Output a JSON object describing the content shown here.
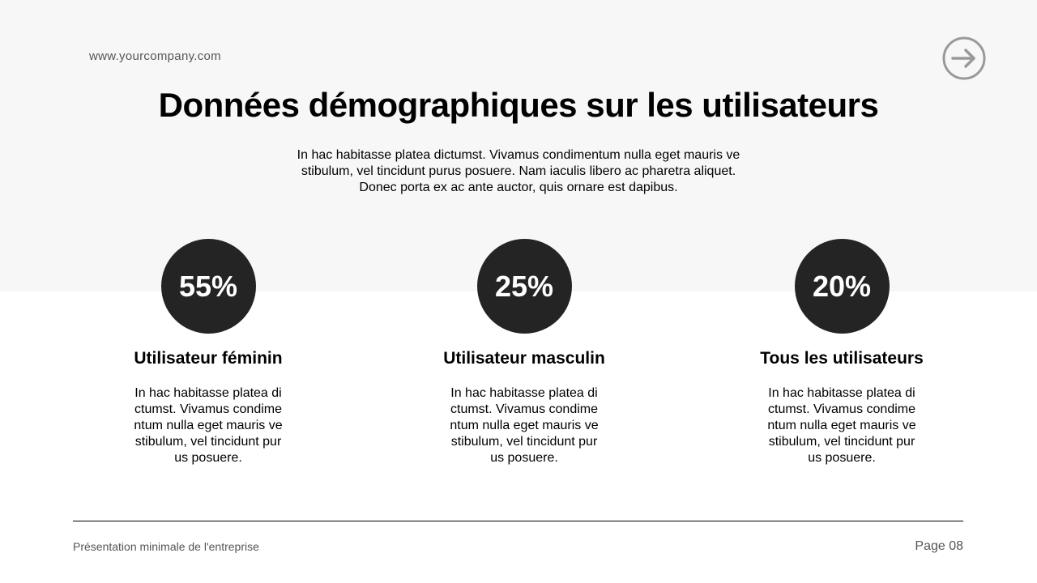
{
  "header": {
    "url": "www.yourcompany.com",
    "next_icon": "arrow-right-circle-icon"
  },
  "title": "Données démographiques sur les utilisateurs",
  "intro_lines": [
    "In hac habitasse platea dictumst. Vivamus condimentum nulla eget mauris ve",
    "stibulum, vel tincidunt purus posuere. Nam iaculis libero ac pharetra aliquet.",
    "Donec porta ex ac ante auctor, quis ornare est dapibus."
  ],
  "stats": [
    {
      "value": "55%",
      "label": "Utilisateur féminin",
      "lines": [
        "In hac habitasse platea di",
        "ctumst. Vivamus condime",
        "ntum nulla eget mauris ve",
        "stibulum, vel tincidunt pur",
        "us posuere."
      ]
    },
    {
      "value": "25%",
      "label": "Utilisateur masculin",
      "lines": [
        "In hac habitasse platea di",
        "ctumst. Vivamus condime",
        "ntum nulla eget mauris ve",
        "stibulum, vel tincidunt pur",
        "us posuere."
      ]
    },
    {
      "value": "20%",
      "label": "Tous les utilisateurs",
      "lines": [
        "In hac habitasse platea di",
        "ctumst. Vivamus condime",
        "ntum nulla eget mauris ve",
        "stibulum, vel tincidunt pur",
        "us posuere."
      ]
    }
  ],
  "footer": {
    "left": "Présentation minimale de l'entreprise",
    "page": "Page 08"
  },
  "colors": {
    "band": "#f7f7f7",
    "circle": "#242424",
    "icon": "#999999"
  }
}
